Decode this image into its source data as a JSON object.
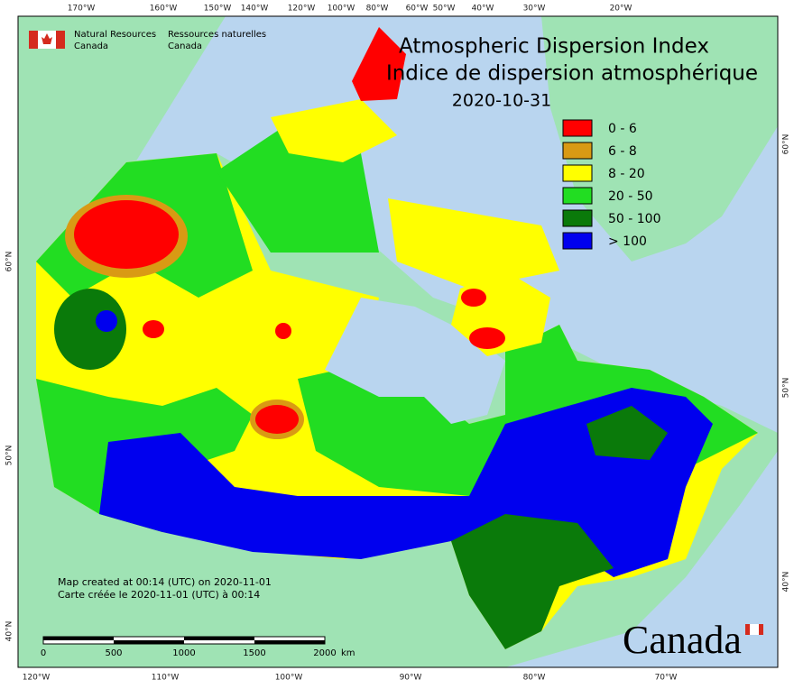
{
  "header": {
    "agency_en": [
      "Natural Resources",
      "Canada"
    ],
    "agency_fr": [
      "Ressources naturelles",
      "Canada"
    ]
  },
  "title": "Atmospheric Dispersion Index",
  "subtitle": "Indice de dispersion atmosphérique",
  "date": "2020-10-31",
  "legend": [
    {
      "label": "0 - 6",
      "color": "#ff0000"
    },
    {
      "label": "6 - 8",
      "color": "#d99a14"
    },
    {
      "label": "8 - 20",
      "color": "#ffff00"
    },
    {
      "label": "20 - 50",
      "color": "#22dd22"
    },
    {
      "label": "50 - 100",
      "color": "#0a7a0a"
    },
    {
      "label": "> 100",
      "color": "#0000ee"
    }
  ],
  "credits": [
    "Map created at 00:14 (UTC) on 2020-11-01",
    "Carte créée le 2020-11-01 (UTC) à 00:14"
  ],
  "graticule": {
    "top": [
      "170°W",
      "160°W",
      "150°W",
      "140°W",
      "120°W",
      "100°W",
      "80°W",
      "60°W",
      "50°W",
      "40°W",
      "30°W",
      "20°W"
    ],
    "bottom": [
      "120°W",
      "110°W",
      "100°W",
      "90°W",
      "80°W",
      "70°W"
    ],
    "left": [
      "60°N",
      "50°N",
      "40°N"
    ],
    "right": [
      "60°N",
      "50°N",
      "40°N"
    ]
  },
  "scale": {
    "ticks": [
      "0",
      "500",
      "1000",
      "1500",
      "2000"
    ],
    "unit": "km"
  },
  "wordmark": "Canada"
}
